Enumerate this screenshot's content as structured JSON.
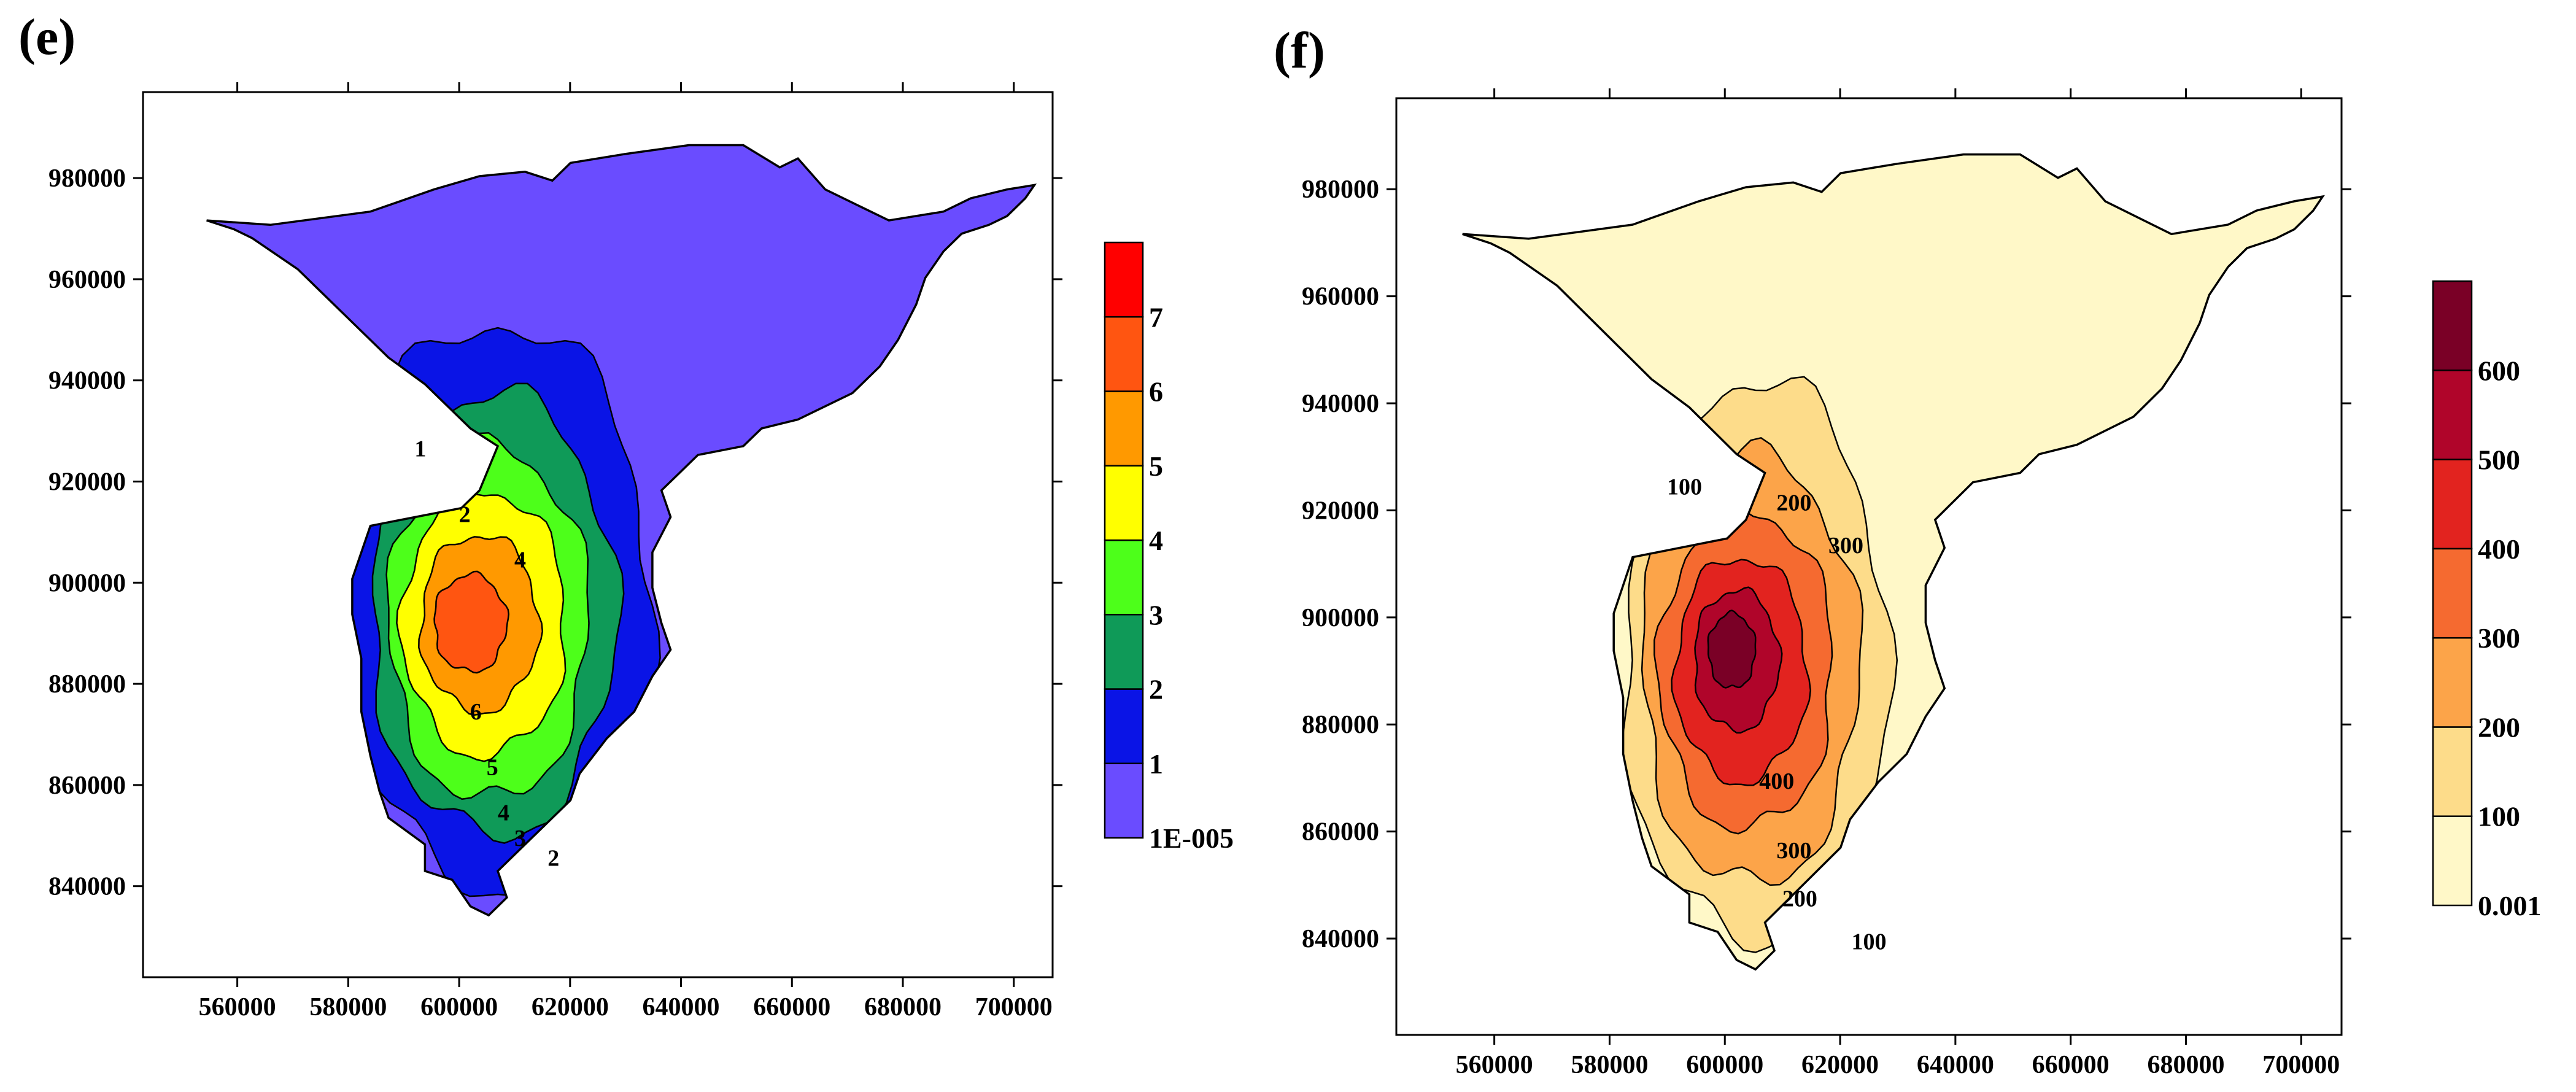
{
  "chart_data": [
    {
      "type": "heatmap",
      "panel_label": "(e)",
      "title": "",
      "xlabel": "",
      "ylabel": "",
      "xlim": [
        543000,
        707000
      ],
      "ylim": [
        822000,
        997000
      ],
      "x_ticks": [
        "560000",
        "580000",
        "600000",
        "620000",
        "640000",
        "660000",
        "680000",
        "700000"
      ],
      "y_ticks": [
        "840000",
        "860000",
        "880000",
        "900000",
        "920000",
        "940000",
        "960000",
        "980000"
      ],
      "levels": [
        {
          "label": "1E-005",
          "color": "#6a4cff"
        },
        {
          "label": "1",
          "color": "#0a14e6"
        },
        {
          "label": "2",
          "color": "#0f9a58"
        },
        {
          "label": "3",
          "color": "#4dff1a"
        },
        {
          "label": "4",
          "color": "#ffff00"
        },
        {
          "label": "5",
          "color": "#ff9900"
        },
        {
          "label": "6",
          "color": "#ff5511"
        },
        {
          "label": "7",
          "color": "#ff0000"
        }
      ],
      "contour_labels": [
        {
          "text": "1",
          "x": 593000,
          "y": 925000
        },
        {
          "text": "2",
          "x": 601000,
          "y": 912000
        },
        {
          "text": "4",
          "x": 611000,
          "y": 903000
        },
        {
          "text": "6",
          "x": 603000,
          "y": 873000
        },
        {
          "text": "5",
          "x": 606000,
          "y": 862000
        },
        {
          "text": "4",
          "x": 608000,
          "y": 853000
        },
        {
          "text": "3",
          "x": 611000,
          "y": 848000
        },
        {
          "text": "2",
          "x": 617000,
          "y": 844000
        }
      ]
    },
    {
      "type": "heatmap",
      "panel_label": "(f)",
      "title": "",
      "xlabel": "",
      "ylabel": "",
      "xlim": [
        543000,
        707000
      ],
      "ylim": [
        822000,
        997000
      ],
      "x_ticks": [
        "560000",
        "580000",
        "600000",
        "620000",
        "640000",
        "660000",
        "680000",
        "700000"
      ],
      "y_ticks": [
        "840000",
        "860000",
        "880000",
        "900000",
        "920000",
        "940000",
        "960000",
        "980000"
      ],
      "levels": [
        {
          "label": "0.001",
          "color": "#fff8c8"
        },
        {
          "label": "100",
          "color": "#fddc8a"
        },
        {
          "label": "200",
          "color": "#fca449"
        },
        {
          "label": "300",
          "color": "#f56a30"
        },
        {
          "label": "400",
          "color": "#e2231f"
        },
        {
          "label": "500",
          "color": "#b0052a"
        },
        {
          "label": "600",
          "color": "#7a0026"
        }
      ],
      "contour_labels": [
        {
          "text": "100",
          "x": 593000,
          "y": 923000
        },
        {
          "text": "200",
          "x": 612000,
          "y": 920000
        },
        {
          "text": "300",
          "x": 621000,
          "y": 912000
        },
        {
          "text": "400",
          "x": 609000,
          "y": 868000
        },
        {
          "text": "300",
          "x": 612000,
          "y": 855000
        },
        {
          "text": "200",
          "x": 613000,
          "y": 846000
        },
        {
          "text": "100",
          "x": 625000,
          "y": 838000
        }
      ]
    }
  ],
  "colors": {
    "outline": "#000000",
    "background": "#ffffff"
  }
}
